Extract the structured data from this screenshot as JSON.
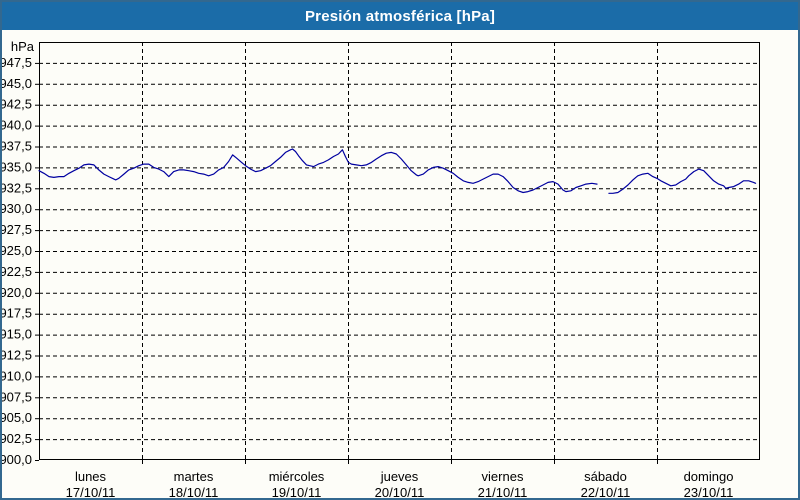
{
  "window": {
    "title": "Presión atmosférica [hPa]"
  },
  "colors": {
    "title_bar": "#1b6ca8",
    "title_text": "#ffffff",
    "outer_border": "#33688f",
    "background": "#fdfdf8",
    "plot_frame": "#000000",
    "gridline": "#000000",
    "label_text": "#000000",
    "series_line": "#0000a0"
  },
  "chart_data": {
    "type": "line",
    "title": "Presión atmosférica [hPa]",
    "unit_label": "hPa",
    "ylim": [
      900,
      950
    ],
    "xlim_days": [
      0,
      7
    ],
    "grid": true,
    "legend": "none",
    "y_ticks": [
      {
        "v": 947.5,
        "label": "947,5"
      },
      {
        "v": 945.0,
        "label": "945,0"
      },
      {
        "v": 942.5,
        "label": "942,5"
      },
      {
        "v": 940.0,
        "label": "940,0"
      },
      {
        "v": 937.5,
        "label": "937,5"
      },
      {
        "v": 935.0,
        "label": "935,0"
      },
      {
        "v": 932.5,
        "label": "932,5"
      },
      {
        "v": 930.0,
        "label": "930,0"
      },
      {
        "v": 927.5,
        "label": "927,5"
      },
      {
        "v": 925.0,
        "label": "925,0"
      },
      {
        "v": 922.5,
        "label": "922,5"
      },
      {
        "v": 920.0,
        "label": "920,0"
      },
      {
        "v": 917.5,
        "label": "917,5"
      },
      {
        "v": 915.0,
        "label": "915,0"
      },
      {
        "v": 912.5,
        "label": "912,5"
      },
      {
        "v": 910.0,
        "label": "910,0"
      },
      {
        "v": 907.5,
        "label": "907,5"
      },
      {
        "v": 905.0,
        "label": "905,0"
      },
      {
        "v": 902.5,
        "label": "902,5"
      },
      {
        "v": 900.0,
        "label": "900,0"
      }
    ],
    "x_days": [
      {
        "name": "lunes",
        "date": "17/10/11"
      },
      {
        "name": "martes",
        "date": "18/10/11"
      },
      {
        "name": "miércoles",
        "date": "19/10/11"
      },
      {
        "name": "jueves",
        "date": "20/10/11"
      },
      {
        "name": "viernes",
        "date": "21/10/11"
      },
      {
        "name": "sábado",
        "date": "22/10/11"
      },
      {
        "name": "domingo",
        "date": "23/10/11"
      }
    ],
    "series": [
      {
        "name": "Presión atmosférica",
        "unit": "hPa",
        "segments": [
          [
            [
              0.0,
              934.6
            ],
            [
              0.048,
              934.3
            ],
            [
              0.097,
              933.9
            ],
            [
              0.145,
              933.8
            ],
            [
              0.194,
              933.9
            ],
            [
              0.242,
              933.9
            ],
            [
              0.291,
              934.3
            ],
            [
              0.339,
              934.6
            ],
            [
              0.388,
              934.9
            ],
            [
              0.436,
              935.3
            ],
            [
              0.484,
              935.4
            ],
            [
              0.533,
              935.3
            ],
            [
              0.581,
              934.7
            ],
            [
              0.63,
              934.2
            ],
            [
              0.678,
              933.9
            ],
            [
              0.727,
              933.6
            ],
            [
              0.746,
              933.5
            ],
            [
              0.775,
              933.7
            ],
            [
              0.824,
              934.2
            ],
            [
              0.872,
              934.7
            ],
            [
              0.92,
              934.9
            ],
            [
              0.969,
              935.2
            ],
            [
              1.017,
              935.4
            ],
            [
              1.066,
              935.4
            ],
            [
              1.114,
              935.0
            ],
            [
              1.163,
              934.8
            ],
            [
              1.211,
              934.5
            ],
            [
              1.26,
              933.9
            ],
            [
              1.308,
              934.5
            ],
            [
              1.357,
              934.7
            ],
            [
              1.405,
              934.7
            ],
            [
              1.453,
              934.6
            ],
            [
              1.502,
              934.5
            ],
            [
              1.55,
              934.3
            ],
            [
              1.599,
              934.2
            ],
            [
              1.647,
              934.0
            ],
            [
              1.696,
              934.2
            ],
            [
              1.744,
              934.7
            ],
            [
              1.793,
              935.0
            ],
            [
              1.841,
              935.7
            ],
            [
              1.88,
              936.5
            ],
            [
              1.919,
              936.1
            ],
            [
              1.967,
              935.6
            ],
            [
              2.006,
              935.2
            ],
            [
              2.054,
              934.8
            ],
            [
              2.103,
              934.5
            ],
            [
              2.151,
              934.6
            ],
            [
              2.2,
              934.9
            ],
            [
              2.248,
              935.2
            ],
            [
              2.296,
              935.7
            ],
            [
              2.345,
              936.2
            ],
            [
              2.393,
              936.8
            ],
            [
              2.442,
              937.1
            ],
            [
              2.461,
              937.2
            ],
            [
              2.49,
              936.9
            ],
            [
              2.519,
              936.4
            ],
            [
              2.558,
              935.8
            ],
            [
              2.597,
              935.3
            ],
            [
              2.665,
              935.1
            ],
            [
              2.713,
              935.4
            ],
            [
              2.762,
              935.6
            ],
            [
              2.81,
              935.9
            ],
            [
              2.859,
              936.3
            ],
            [
              2.907,
              936.6
            ],
            [
              2.946,
              937.1
            ],
            [
              2.975,
              936.3
            ],
            [
              3.004,
              935.6
            ],
            [
              3.033,
              935.4
            ],
            [
              3.081,
              935.3
            ],
            [
              3.13,
              935.2
            ],
            [
              3.178,
              935.3
            ],
            [
              3.227,
              935.6
            ],
            [
              3.275,
              936.0
            ],
            [
              3.324,
              936.4
            ],
            [
              3.372,
              936.7
            ],
            [
              3.421,
              936.8
            ],
            [
              3.469,
              936.6
            ],
            [
              3.517,
              936.0
            ],
            [
              3.566,
              935.3
            ],
            [
              3.614,
              934.6
            ],
            [
              3.663,
              934.1
            ],
            [
              3.682,
              934.0
            ],
            [
              3.731,
              934.2
            ],
            [
              3.779,
              934.7
            ],
            [
              3.828,
              935.0
            ],
            [
              3.876,
              935.1
            ],
            [
              3.924,
              934.9
            ],
            [
              3.973,
              934.6
            ],
            [
              4.021,
              934.3
            ],
            [
              4.07,
              933.8
            ],
            [
              4.118,
              933.4
            ],
            [
              4.167,
              933.2
            ],
            [
              4.215,
              933.1
            ],
            [
              4.264,
              933.3
            ],
            [
              4.312,
              933.6
            ],
            [
              4.36,
              933.9
            ],
            [
              4.409,
              934.2
            ],
            [
              4.457,
              934.2
            ],
            [
              4.506,
              933.9
            ],
            [
              4.554,
              933.3
            ],
            [
              4.603,
              932.6
            ],
            [
              4.651,
              932.2
            ],
            [
              4.7,
              932.0
            ],
            [
              4.748,
              932.1
            ],
            [
              4.796,
              932.3
            ],
            [
              4.845,
              932.6
            ],
            [
              4.893,
              932.9
            ],
            [
              4.942,
              933.2
            ],
            [
              4.99,
              933.3
            ],
            [
              5.039,
              933.0
            ],
            [
              5.087,
              932.3
            ],
            [
              5.116,
              932.1
            ],
            [
              5.165,
              932.2
            ],
            [
              5.213,
              932.6
            ],
            [
              5.262,
              932.8
            ],
            [
              5.31,
              933.0
            ],
            [
              5.368,
              933.1
            ],
            [
              5.417,
              933.0
            ]
          ],
          [
            [
              5.533,
              931.9
            ],
            [
              5.572,
              931.9
            ],
            [
              5.62,
              932.0
            ],
            [
              5.669,
              932.4
            ],
            [
              5.717,
              932.9
            ],
            [
              5.766,
              933.5
            ],
            [
              5.814,
              934.0
            ],
            [
              5.862,
              934.2
            ],
            [
              5.911,
              934.3
            ],
            [
              5.959,
              933.9
            ],
            [
              5.998,
              933.7
            ],
            [
              6.037,
              933.4
            ],
            [
              6.085,
              933.1
            ],
            [
              6.134,
              932.8
            ],
            [
              6.182,
              932.9
            ],
            [
              6.231,
              933.3
            ],
            [
              6.279,
              933.6
            ],
            [
              6.308,
              934.0
            ],
            [
              6.357,
              934.5
            ],
            [
              6.405,
              934.8
            ],
            [
              6.453,
              934.6
            ],
            [
              6.502,
              934.0
            ],
            [
              6.55,
              933.4
            ],
            [
              6.599,
              933.0
            ],
            [
              6.647,
              932.8
            ],
            [
              6.667,
              932.5
            ],
            [
              6.696,
              932.6
            ],
            [
              6.744,
              932.7
            ],
            [
              6.793,
              933.0
            ],
            [
              6.841,
              933.4
            ],
            [
              6.89,
              933.4
            ],
            [
              6.938,
              933.2
            ],
            [
              6.957,
              933.1
            ]
          ]
        ]
      }
    ]
  }
}
